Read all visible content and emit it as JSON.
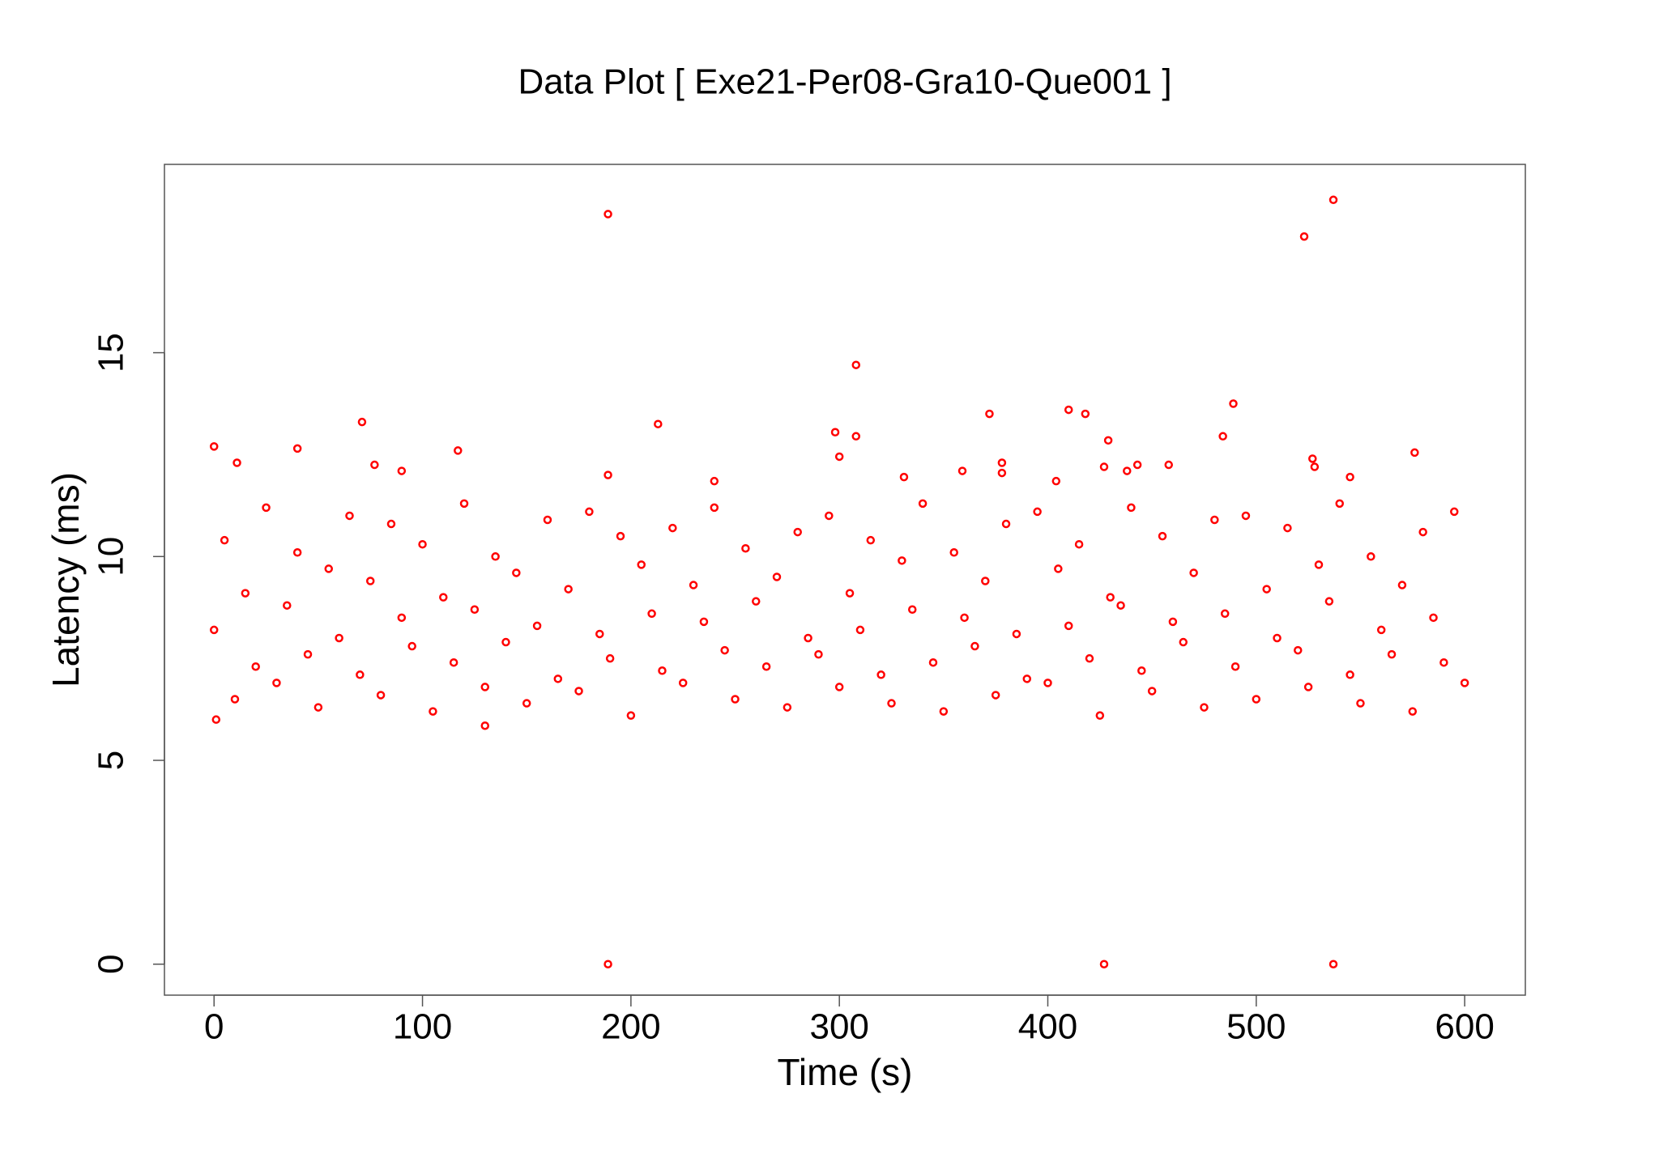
{
  "chart_data": {
    "type": "scatter",
    "title": "Data Plot [ Exe21-Per08-Gra10-Que001 ]",
    "x_label": "Time (s)",
    "y_label": "Latency (ms)",
    "color": "#ff0000",
    "xlim": [
      -23.8,
      629.1
    ],
    "ylim": [
      -0.76,
      19.62
    ],
    "xticks": [
      0,
      100,
      200,
      300,
      400,
      500,
      600
    ],
    "yticks": [
      0,
      5,
      10,
      15
    ],
    "x": [
      0,
      11,
      40,
      71,
      77,
      90,
      117,
      189,
      189,
      213,
      189,
      240,
      298,
      300,
      308,
      308,
      331,
      359,
      372,
      378,
      378,
      404,
      410,
      418,
      427,
      429,
      427,
      438,
      443,
      458,
      484,
      489,
      523,
      527,
      528,
      537,
      537,
      545,
      576,
      1,
      130,
      0,
      5,
      10,
      15,
      20,
      25,
      30,
      35,
      40,
      45,
      50,
      55,
      60,
      65,
      70,
      75,
      80,
      85,
      90,
      95,
      100,
      105,
      110,
      115,
      120,
      125,
      130,
      135,
      140,
      145,
      150,
      155,
      160,
      165,
      170,
      175,
      180,
      185,
      190,
      195,
      200,
      205,
      210,
      215,
      220,
      225,
      230,
      235,
      240,
      245,
      250,
      255,
      260,
      265,
      270,
      275,
      280,
      285,
      290,
      295,
      300,
      305,
      310,
      315,
      320,
      325,
      330,
      335,
      340,
      345,
      350,
      355,
      360,
      365,
      370,
      375,
      380,
      385,
      390,
      395,
      400,
      405,
      410,
      415,
      420,
      425,
      430,
      435,
      440,
      445,
      450,
      455,
      460,
      465,
      470,
      475,
      480,
      485,
      490,
      495,
      500,
      505,
      510,
      515,
      520,
      525,
      530,
      535,
      540,
      545,
      550,
      555,
      560,
      565,
      570,
      575,
      580,
      585,
      590,
      595,
      600
    ],
    "y": [
      12.7,
      12.3,
      12.65,
      13.3,
      12.25,
      12.1,
      12.6,
      18.4,
      12,
      13.25,
      0,
      11.85,
      13.05,
      12.45,
      14.7,
      12.95,
      11.95,
      12.1,
      13.5,
      12.3,
      12.05,
      11.85,
      13.6,
      13.5,
      12.2,
      12.85,
      0,
      12.1,
      12.25,
      12.25,
      12.95,
      13.75,
      17.85,
      12.4,
      12.2,
      18.75,
      0,
      11.95,
      12.55,
      6,
      5.85,
      8.2,
      10.4,
      6.5,
      9.1,
      7.3,
      11.2,
      6.9,
      8.8,
      10.1,
      7.6,
      6.3,
      9.7,
      8.0,
      11.0,
      7.1,
      9.4,
      6.6,
      10.8,
      8.5,
      7.8,
      10.3,
      6.2,
      9.0,
      7.4,
      11.3,
      8.7,
      6.8,
      10.0,
      7.9,
      9.6,
      6.4,
      8.3,
      10.9,
      7.0,
      9.2,
      6.7,
      11.1,
      8.1,
      7.5,
      10.5,
      6.1,
      9.8,
      8.6,
      7.2,
      10.7,
      6.9,
      9.3,
      8.4,
      11.2,
      7.7,
      6.5,
      10.2,
      8.9,
      7.3,
      9.5,
      6.3,
      10.6,
      8.0,
      7.6,
      11.0,
      6.8,
      9.1,
      8.2,
      10.4,
      7.1,
      6.4,
      9.9,
      8.7,
      11.3,
      7.4,
      6.2,
      10.1,
      8.5,
      7.8,
      9.4,
      6.6,
      10.8,
      8.1,
      7.0,
      11.1,
      6.9,
      9.7,
      8.3,
      10.3,
      7.5,
      6.1,
      9.0,
      8.8,
      11.2,
      7.2,
      6.7,
      10.5,
      8.4,
      7.9,
      9.6,
      6.3,
      10.9,
      8.6,
      7.3,
      11.0,
      6.5,
      9.2,
      8.0,
      10.7,
      7.7,
      6.8,
      9.8,
      8.9,
      11.3,
      7.1,
      6.4,
      10.0,
      8.2,
      7.6,
      9.3,
      6.2,
      10.6,
      8.5,
      7.4,
      11.1,
      6.9
    ]
  }
}
